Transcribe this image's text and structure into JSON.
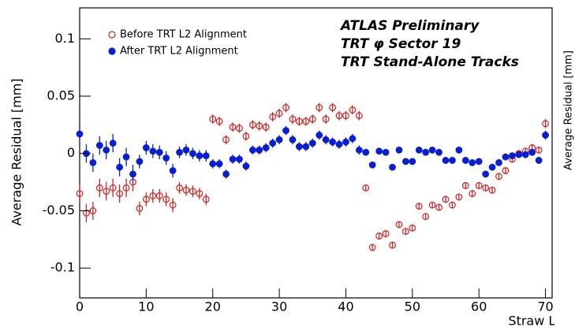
{
  "chart_data": {
    "type": "scatter",
    "xlabel": "Straw Layer",
    "ylabel": "Average Residual [mm]",
    "side_label": "Average Residual [mm]",
    "annotations": [
      "ATLAS Preliminary",
      "TRT φ Sector 19",
      "TRT Stand-Alone Tracks"
    ],
    "xlim": [
      0,
      71
    ],
    "ylim": [
      -0.126,
      0.127
    ],
    "xticks": [
      0,
      10,
      20,
      30,
      40,
      50,
      60,
      70
    ],
    "yticks": [
      -0.1,
      -0.05,
      0,
      0.05,
      0.1
    ],
    "x": [
      0,
      1,
      2,
      3,
      4,
      5,
      6,
      7,
      8,
      9,
      10,
      11,
      12,
      13,
      14,
      15,
      16,
      17,
      18,
      19,
      20,
      21,
      22,
      23,
      24,
      25,
      26,
      27,
      28,
      29,
      30,
      31,
      32,
      33,
      34,
      35,
      36,
      37,
      38,
      39,
      40,
      41,
      42,
      43,
      44,
      45,
      46,
      47,
      48,
      49,
      50,
      51,
      52,
      53,
      54,
      55,
      56,
      57,
      58,
      59,
      60,
      61,
      62,
      63,
      64,
      65,
      66,
      67,
      68,
      69,
      70
    ],
    "series": [
      {
        "name": "Before TRT L2 Alignment",
        "color": "#d42020",
        "marker": "open",
        "values": [
          -0.035,
          -0.052,
          -0.05,
          -0.03,
          -0.033,
          -0.03,
          -0.035,
          -0.03,
          -0.025,
          -0.048,
          -0.04,
          -0.037,
          -0.037,
          -0.04,
          -0.045,
          -0.03,
          -0.032,
          -0.033,
          -0.035,
          -0.04,
          0.03,
          0.028,
          0.012,
          0.023,
          0.022,
          0.015,
          0.025,
          0.024,
          0.023,
          0.032,
          0.035,
          0.04,
          0.03,
          0.028,
          0.028,
          0.03,
          0.04,
          0.03,
          0.04,
          0.033,
          0.033,
          0.038,
          0.033,
          -0.03,
          -0.082,
          -0.072,
          -0.07,
          -0.08,
          -0.062,
          -0.068,
          -0.065,
          -0.046,
          -0.055,
          -0.045,
          -0.047,
          -0.04,
          -0.045,
          -0.038,
          -0.028,
          -0.035,
          -0.028,
          -0.03,
          -0.032,
          -0.02,
          -0.015,
          -0.005,
          0,
          0.002,
          0.005,
          0.003,
          0.026
        ],
        "errors": [
          0.008,
          0.008,
          0.008,
          0.008,
          0.008,
          0.008,
          0.008,
          0.008,
          0.008,
          0.006,
          0.006,
          0.006,
          0.006,
          0.006,
          0.006,
          0.005,
          0.005,
          0.005,
          0.005,
          0.005,
          0.004,
          0.004,
          0.004,
          0.004,
          0.004,
          0.004,
          0.004,
          0.004,
          0.004,
          0.004,
          0.004,
          0.004,
          0.004,
          0.004,
          0.004,
          0.004,
          0.004,
          0.004,
          0.004,
          0.004,
          0.004,
          0.004,
          0.004,
          0.003,
          0.003,
          0.003,
          0.003,
          0.003,
          0.003,
          0.003,
          0.003,
          0.003,
          0.003,
          0.003,
          0.003,
          0.003,
          0.003,
          0.003,
          0.003,
          0.003,
          0.003,
          0.003,
          0.003,
          0.003,
          0.003,
          0.003,
          0.003,
          0.003,
          0.003,
          0.003,
          0.004
        ]
      },
      {
        "name": "After TRT L2 Alignment",
        "color": "#0a1fd0",
        "marker": "filled",
        "values": [
          0.017,
          0,
          -0.008,
          0.007,
          0.003,
          0.009,
          -0.012,
          -0.003,
          -0.018,
          -0.007,
          0.005,
          0.002,
          0.001,
          -0.004,
          -0.015,
          0.001,
          0.003,
          0,
          -0.002,
          -0.002,
          -0.009,
          -0.009,
          -0.018,
          -0.005,
          -0.005,
          -0.011,
          0.003,
          0.003,
          0.005,
          0.009,
          0.012,
          0.02,
          0.012,
          0.006,
          0.006,
          0.009,
          0.016,
          0.012,
          0.01,
          0.008,
          0.01,
          0.013,
          0.003,
          0.001,
          -0.01,
          0.002,
          0.001,
          -0.012,
          0.003,
          -0.007,
          -0.007,
          0.003,
          0.001,
          0.003,
          0.001,
          -0.006,
          -0.006,
          0.003,
          -0.006,
          -0.008,
          -0.007,
          -0.018,
          -0.012,
          -0.008,
          -0.003,
          -0.002,
          -0.001,
          -0.001,
          0.001,
          -0.006,
          0.016
        ],
        "errors": [
          0.008,
          0.008,
          0.008,
          0.008,
          0.008,
          0.008,
          0.008,
          0.008,
          0.008,
          0.006,
          0.006,
          0.006,
          0.006,
          0.006,
          0.006,
          0.005,
          0.005,
          0.005,
          0.005,
          0.005,
          0.004,
          0.004,
          0.004,
          0.004,
          0.004,
          0.004,
          0.004,
          0.004,
          0.004,
          0.004,
          0.004,
          0.004,
          0.004,
          0.004,
          0.004,
          0.004,
          0.004,
          0.004,
          0.004,
          0.004,
          0.004,
          0.004,
          0.004,
          0.003,
          0.003,
          0.003,
          0.003,
          0.003,
          0.003,
          0.003,
          0.003,
          0.003,
          0.003,
          0.003,
          0.003,
          0.003,
          0.003,
          0.003,
          0.003,
          0.003,
          0.003,
          0.003,
          0.003,
          0.003,
          0.003,
          0.003,
          0.003,
          0.003,
          0.003,
          0.003,
          0.004
        ]
      }
    ],
    "legend": "upper left"
  }
}
